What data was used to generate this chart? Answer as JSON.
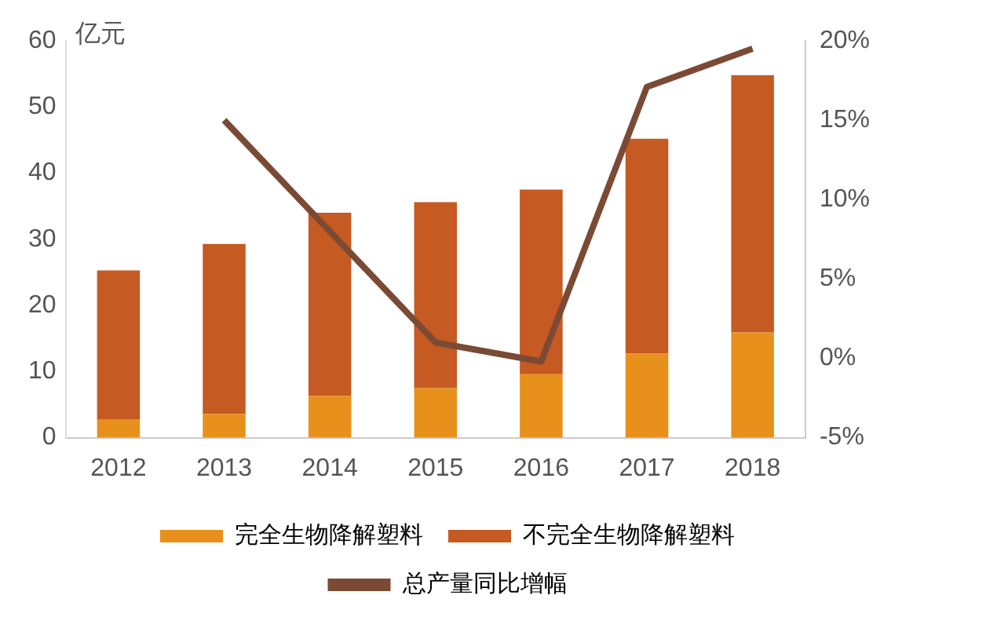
{
  "chart_data": {
    "type": "bar",
    "ylabel": "亿元",
    "categories": [
      "2012",
      "2013",
      "2014",
      "2015",
      "2016",
      "2017",
      "2018"
    ],
    "stacked": true,
    "series": [
      {
        "name": "完全生物降解塑料",
        "color": "#e8901c",
        "values": [
          2.7,
          3.6,
          6.3,
          7.5,
          9.6,
          12.7,
          15.9
        ]
      },
      {
        "name": "不完全生物降解塑料",
        "color": "#c55a22",
        "values": [
          22.6,
          25.7,
          27.7,
          28.1,
          27.9,
          32.5,
          38.9
        ]
      },
      {
        "name": "总产量同比增幅",
        "type": "line",
        "axis": "y2",
        "color": "#7b4a35",
        "values": [
          null,
          15.0,
          8.0,
          1.0,
          -0.2,
          17.1,
          19.5
        ]
      }
    ],
    "ylim": [
      0,
      60
    ],
    "yticks": [
      0,
      10,
      20,
      30,
      40,
      50,
      60
    ],
    "y2lim": [
      -5,
      20
    ],
    "y2ticks": [
      {
        "value": -5,
        "label": "-5%"
      },
      {
        "value": 0,
        "label": "0%"
      },
      {
        "value": 5,
        "label": "5%"
      },
      {
        "value": 10,
        "label": "10%"
      },
      {
        "value": 15,
        "label": "15%"
      },
      {
        "value": 20,
        "label": "20%"
      }
    ],
    "grid": false,
    "legend": "bottom",
    "marker": "none"
  }
}
